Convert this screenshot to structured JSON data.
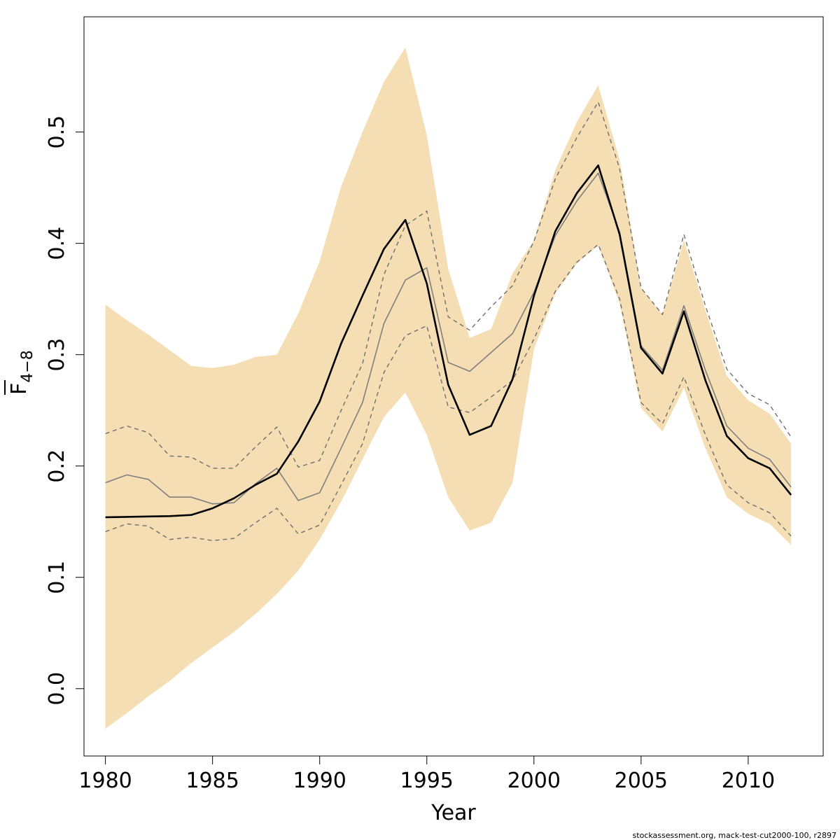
{
  "chart_data": {
    "type": "line",
    "xlabel": "Year",
    "ylabel_main": "F",
    "ylabel_sub": "4−8",
    "xlim": [
      1979,
      2013.5
    ],
    "ylim": [
      -0.0605,
      0.6035
    ],
    "x_ticks": [
      1980,
      1985,
      1990,
      1995,
      2000,
      2005,
      2010
    ],
    "y_ticks": [
      0.0,
      0.1,
      0.2,
      0.3,
      0.4,
      0.5
    ],
    "x_tick_labels": [
      "1980",
      "1985",
      "1990",
      "1995",
      "2000",
      "2005",
      "2010"
    ],
    "y_tick_labels": [
      "0.0",
      "0.1",
      "0.2",
      "0.3",
      "0.4",
      "0.5"
    ],
    "years": [
      1980,
      1981,
      1982,
      1983,
      1984,
      1985,
      1986,
      1987,
      1988,
      1989,
      1990,
      1991,
      1992,
      1993,
      1994,
      1995,
      1996,
      1997,
      1998,
      1999,
      2000,
      2001,
      2002,
      2003,
      2004,
      2005,
      2006,
      2007,
      2008,
      2009,
      2010,
      2011,
      2012
    ],
    "band": {
      "color": "#F5DEB3",
      "upper": [
        0.345,
        0.331,
        0.318,
        0.304,
        0.29,
        0.288,
        0.291,
        0.298,
        0.3,
        0.337,
        0.384,
        0.451,
        0.5,
        0.545,
        0.576,
        0.497,
        0.377,
        0.315,
        0.323,
        0.373,
        0.403,
        0.466,
        0.509,
        0.542,
        0.475,
        0.36,
        0.336,
        0.403,
        0.34,
        0.281,
        0.259,
        0.247,
        0.22
      ],
      "lower": [
        -0.036,
        -0.022,
        -0.007,
        0.007,
        0.023,
        0.037,
        0.051,
        0.067,
        0.085,
        0.106,
        0.134,
        0.168,
        0.206,
        0.244,
        0.266,
        0.228,
        0.172,
        0.142,
        0.149,
        0.185,
        0.305,
        0.355,
        0.382,
        0.398,
        0.346,
        0.252,
        0.231,
        0.27,
        0.216,
        0.172,
        0.157,
        0.148,
        0.129
      ]
    },
    "series": [
      {
        "style": "solid-black",
        "values": [
          0.154,
          0.1543,
          0.1547,
          0.155,
          0.156,
          0.162,
          0.171,
          0.183,
          0.193,
          0.222,
          0.258,
          0.31,
          0.353,
          0.395,
          0.421,
          0.364,
          0.273,
          0.228,
          0.236,
          0.278,
          0.353,
          0.411,
          0.445,
          0.47,
          0.408,
          0.306,
          0.283,
          0.339,
          0.277,
          0.227,
          0.207,
          0.198,
          0.174
        ]
      },
      {
        "style": "solid-grey",
        "values": [
          0.185,
          0.192,
          0.188,
          0.172,
          0.172,
          0.166,
          0.167,
          0.184,
          0.198,
          0.169,
          0.176,
          0.216,
          0.257,
          0.328,
          0.367,
          0.378,
          0.293,
          0.285,
          0.302,
          0.319,
          0.356,
          0.407,
          0.438,
          0.463,
          0.41,
          0.308,
          0.286,
          0.344,
          0.286,
          0.236,
          0.216,
          0.206,
          0.181
        ]
      },
      {
        "style": "dashed-grey",
        "values": [
          0.229,
          0.236,
          0.23,
          0.209,
          0.208,
          0.198,
          0.198,
          0.217,
          0.235,
          0.199,
          0.205,
          0.25,
          0.292,
          0.372,
          0.416,
          0.429,
          0.334,
          0.322,
          0.343,
          0.362,
          0.402,
          0.458,
          0.495,
          0.527,
          0.467,
          0.36,
          0.336,
          0.408,
          0.344,
          0.287,
          0.265,
          0.255,
          0.226
        ]
      },
      {
        "style": "dashed-grey",
        "values": [
          0.141,
          0.148,
          0.146,
          0.134,
          0.136,
          0.133,
          0.135,
          0.149,
          0.162,
          0.139,
          0.147,
          0.183,
          0.22,
          0.284,
          0.317,
          0.326,
          0.253,
          0.248,
          0.262,
          0.277,
          0.314,
          0.357,
          0.383,
          0.399,
          0.35,
          0.257,
          0.238,
          0.28,
          0.228,
          0.183,
          0.167,
          0.158,
          0.137
        ]
      }
    ]
  },
  "footer_text": "stockassessment.org, mack-test-cut2000-100, r2897"
}
